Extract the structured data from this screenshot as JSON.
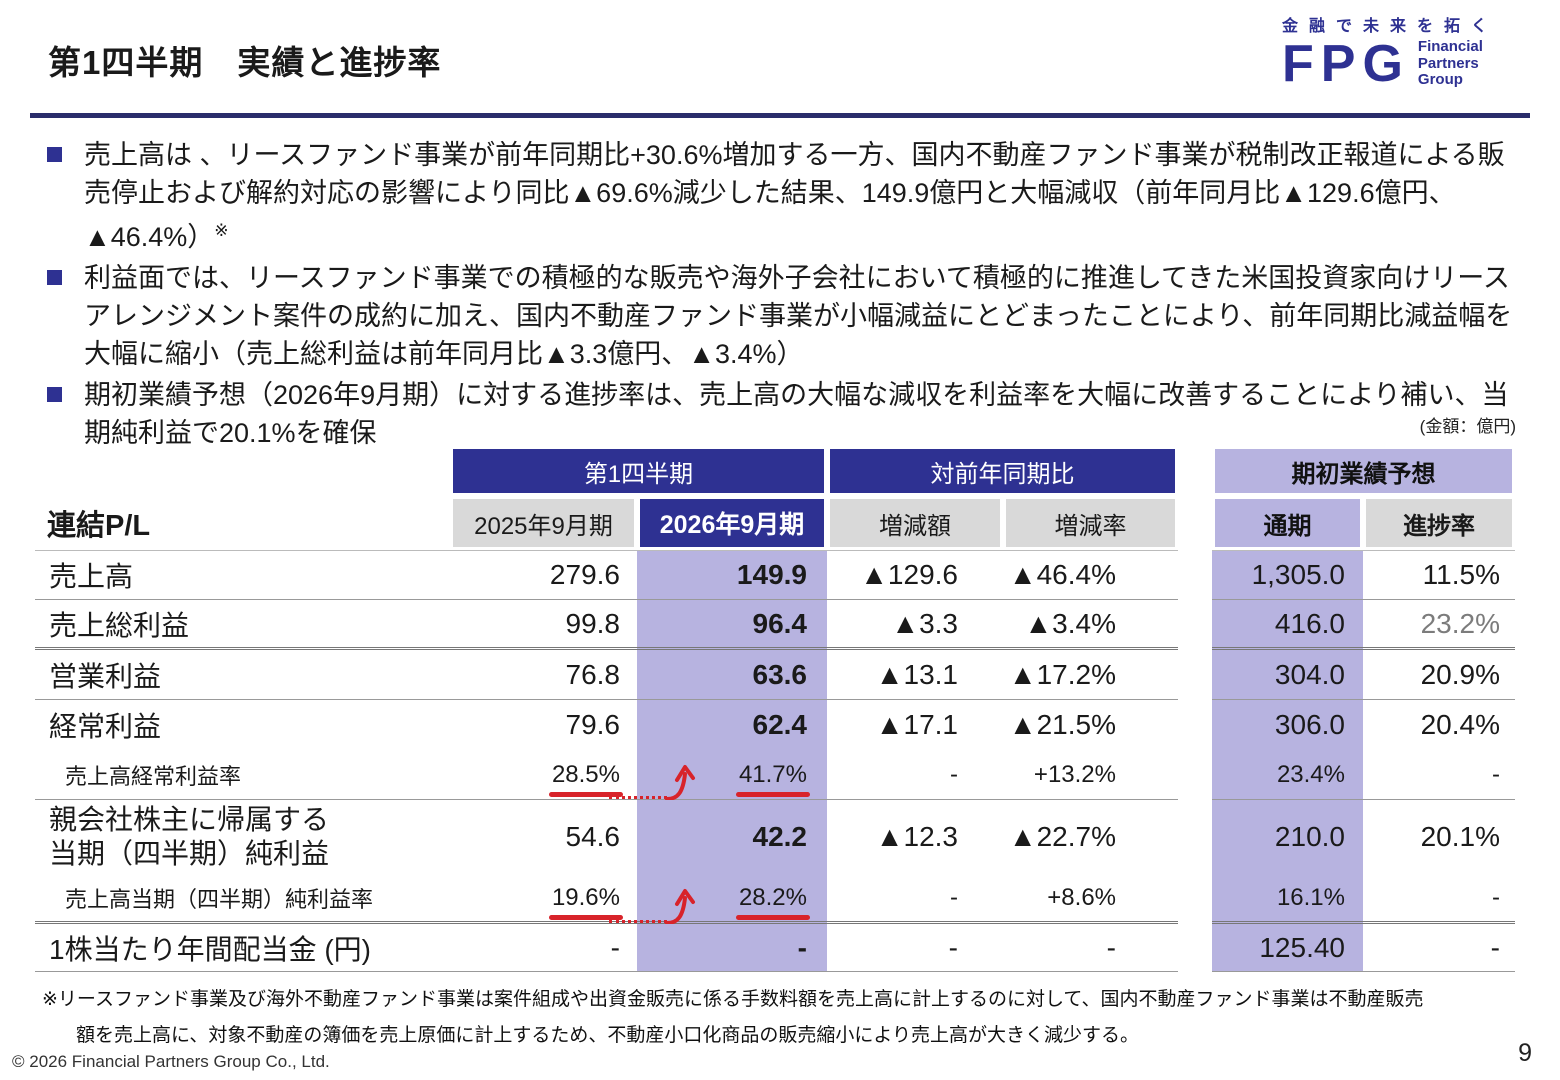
{
  "theme": {
    "navy": "#2e3192",
    "purple": "#b7b3e0",
    "gray": "#d9d9d9",
    "red": "#d8232a"
  },
  "header": {
    "title": "第1四半期　実績と進捗率",
    "logo": {
      "tagline": "金融で未来を拓く",
      "acronym": "FPG",
      "name_lines": [
        "Financial",
        "Partners",
        "Group"
      ]
    }
  },
  "bullets": [
    {
      "text": "売上高は 、リースファンド事業が前年同期比+30.6%増加する一方、国内不動産ファンド事業が税制改正報道による販売停止および解約対応の影響により同比▲69.6%減少した結果、149.9億円と大幅減収（前年同月比▲129.6億円、▲46.4%）",
      "note_marker": "※"
    },
    {
      "text": "利益面では、リースファンド事業での積極的な販売や海外子会社において積極的に推進してきた米国投資家向けリースアレンジメント案件の成約に加え、国内不動産ファンド事業が小幅減益にとどまったことにより、前年同期比減益幅を大幅に縮小（売上総利益は前年同月比▲3.3億円、▲3.4%）"
    },
    {
      "text": "期初業績予想（2026年9月期）に対する進捗率は、売上高の大幅な減収を利益率を大幅に改善することにより補い、当期純利益で20.1%を確保"
    }
  ],
  "table": {
    "unit_note": "(金額：億円)",
    "corner_label": "連結P/L",
    "groups": {
      "q1": "第1四半期",
      "yoy": "対前年同期比",
      "forecast": "期初業績予想"
    },
    "columns": {
      "prev": "2025年9月期",
      "curr": "2026年9月期",
      "diff_amount": "増減額",
      "diff_rate": "増減率",
      "full_year": "通期",
      "progress": "進捗率"
    },
    "rows": [
      {
        "type": "main",
        "border": "single",
        "label": "売上高",
        "prev": "279.6",
        "curr": "149.9",
        "diff_amount": "▲129.6",
        "diff_rate": "▲46.4%",
        "full_year": "1,305.0",
        "progress": "11.5%"
      },
      {
        "type": "main",
        "border": "double",
        "label": "売上総利益",
        "prev": "99.8",
        "curr": "96.4",
        "diff_amount": "▲3.3",
        "diff_rate": "▲3.4%",
        "full_year": "416.0",
        "progress": "23.2%",
        "progress_muted": true
      },
      {
        "type": "main",
        "border": "single",
        "label": "営業利益",
        "prev": "76.8",
        "curr": "63.6",
        "diff_amount": "▲13.1",
        "diff_rate": "▲17.2%",
        "full_year": "304.0",
        "progress": "20.9%"
      },
      {
        "type": "main",
        "border": "none",
        "label": "経常利益",
        "prev": "79.6",
        "curr": "62.4",
        "diff_amount": "▲17.1",
        "diff_rate": "▲21.5%",
        "full_year": "306.0",
        "progress": "20.4%"
      },
      {
        "type": "ratio",
        "border": "single",
        "annotated": true,
        "label": "売上高経常利益率",
        "prev": "28.5%",
        "curr": "41.7%",
        "diff_amount": "-",
        "diff_rate": "+13.2%",
        "full_year": "23.4%",
        "progress": "-"
      },
      {
        "type": "main2",
        "border": "none",
        "label_lines": [
          "親会社株主に帰属する",
          "当期（四半期）純利益"
        ],
        "prev": "54.6",
        "curr": "42.2",
        "diff_amount": "▲12.3",
        "diff_rate": "▲22.7%",
        "full_year": "210.0",
        "progress": "20.1%"
      },
      {
        "type": "ratio",
        "border": "double",
        "annotated": true,
        "label": "売上高当期（四半期）純利益率",
        "prev": "19.6%",
        "curr": "28.2%",
        "diff_amount": "-",
        "diff_rate": "+8.6%",
        "full_year": "16.1%",
        "progress": "-"
      },
      {
        "type": "dividend",
        "border": "single",
        "label": "1株当たり年間配当金 (円)",
        "prev": "-",
        "curr": "-",
        "diff_amount": "-",
        "diff_rate": "-",
        "full_year": "125.40",
        "progress": "-"
      }
    ]
  },
  "footnote": {
    "line1": "※リースファンド事業及び海外不動産ファンド事業は案件組成や出資金販売に係る手数料額を売上高に計上するのに対して、国内不動産ファンド事業は不動産販売",
    "line2": "額を売上高に、対象不動産の簿価を売上原価に計上するため、不動産小口化商品の販売縮小により売上高が大きく減少する。"
  },
  "footer": {
    "copyright": "© 2026 Financial Partners Group Co., Ltd.",
    "page_number": "9"
  }
}
